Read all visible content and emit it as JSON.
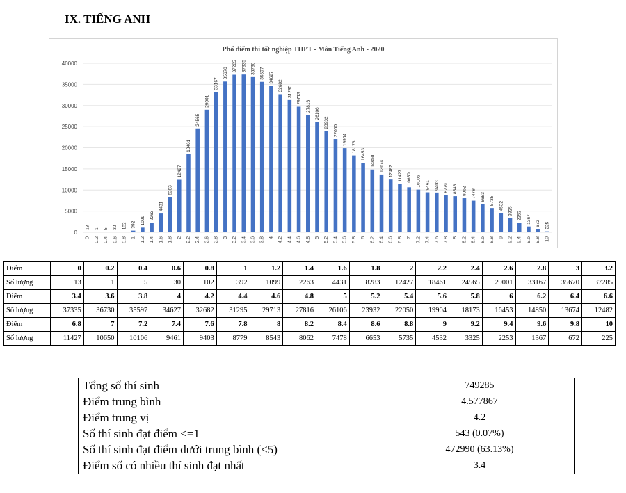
{
  "heading": "IX. TIẾNG ANH",
  "chart_data": {
    "type": "bar",
    "title": "Phổ điểm thi tốt nghiệp THPT - Môn Tiếng Anh - 2020",
    "xlabel": "",
    "ylabel": "",
    "ylim": [
      0,
      40000
    ],
    "yticks": [
      0,
      5000,
      10000,
      15000,
      20000,
      25000,
      30000,
      35000,
      40000
    ],
    "grid": true,
    "legend": "none",
    "bar_color": "#4472c4",
    "categories": [
      "0",
      "0.2",
      "0.4",
      "0.6",
      "0.8",
      "1",
      "1.2",
      "1.4",
      "1.6",
      "1.8",
      "2",
      "2.2",
      "2.4",
      "2.6",
      "2.8",
      "3",
      "3.2",
      "3.4",
      "3.6",
      "3.8",
      "4",
      "4.2",
      "4.4",
      "4.6",
      "4.8",
      "5",
      "5.2",
      "5.4",
      "5.6",
      "5.8",
      "6",
      "6.2",
      "6.4",
      "6.6",
      "6.8",
      "7",
      "7.2",
      "7.4",
      "7.6",
      "7.8",
      "8",
      "8.2",
      "8.4",
      "8.6",
      "8.8",
      "9",
      "9.2",
      "9.4",
      "9.6",
      "9.8",
      "10"
    ],
    "values": [
      13,
      1,
      5,
      30,
      102,
      392,
      1099,
      2263,
      4431,
      8283,
      12427,
      18461,
      24565,
      29001,
      33167,
      35670,
      37285,
      37335,
      36730,
      35597,
      34627,
      32682,
      31295,
      29713,
      27816,
      26106,
      23932,
      22050,
      19904,
      18173,
      16453,
      14850,
      13674,
      12482,
      11427,
      10650,
      10106,
      9461,
      9403,
      8779,
      8543,
      8062,
      7478,
      6653,
      5735,
      4532,
      3325,
      2253,
      1367,
      672,
      225
    ]
  },
  "dist_table": {
    "score_label": "Điểm",
    "count_label": "Số lượng",
    "blocks": [
      {
        "scores": [
          "0",
          "0.2",
          "0.4",
          "0.6",
          "0.8",
          "1",
          "1.2",
          "1.4",
          "1.6",
          "1.8",
          "2",
          "2.2",
          "2.4",
          "2.6",
          "2.8",
          "3",
          "3.2"
        ],
        "counts": [
          "13",
          "1",
          "5",
          "30",
          "102",
          "392",
          "1099",
          "2263",
          "4431",
          "8283",
          "12427",
          "18461",
          "24565",
          "29001",
          "33167",
          "35670",
          "37285"
        ]
      },
      {
        "scores": [
          "3.4",
          "3.6",
          "3.8",
          "4",
          "4.2",
          "4.4",
          "4.6",
          "4.8",
          "5",
          "5.2",
          "5.4",
          "5.6",
          "5.8",
          "6",
          "6.2",
          "6.4",
          "6.6"
        ],
        "counts": [
          "37335",
          "36730",
          "35597",
          "34627",
          "32682",
          "31295",
          "29713",
          "27816",
          "26106",
          "23932",
          "22050",
          "19904",
          "18173",
          "16453",
          "14850",
          "13674",
          "12482"
        ]
      },
      {
        "scores": [
          "6.8",
          "7",
          "7.2",
          "7.4",
          "7.6",
          "7.8",
          "8",
          "8.2",
          "8.4",
          "8.6",
          "8.8",
          "9",
          "9.2",
          "9.4",
          "9.6",
          "9.8",
          "10"
        ],
        "counts": [
          "11427",
          "10650",
          "10106",
          "9461",
          "9403",
          "8779",
          "8543",
          "8062",
          "7478",
          "6653",
          "5735",
          "4532",
          "3325",
          "2253",
          "1367",
          "672",
          "225"
        ]
      }
    ]
  },
  "stats": [
    {
      "label": "Tổng số thí sinh",
      "value": "749285"
    },
    {
      "label": "Điểm trung bình",
      "value": "4.577867"
    },
    {
      "label": "Điểm trung vị",
      "value": "4.2"
    },
    {
      "label": "Số thí sinh đạt điểm <=1",
      "value": "543 (0.07%)"
    },
    {
      "label": "Số thí sinh đạt điểm dưới trung bình (<5)",
      "value": "472990 (63.13%)"
    },
    {
      "label": "Điểm số có nhiều thí sinh đạt nhất",
      "value": "3.4"
    }
  ]
}
